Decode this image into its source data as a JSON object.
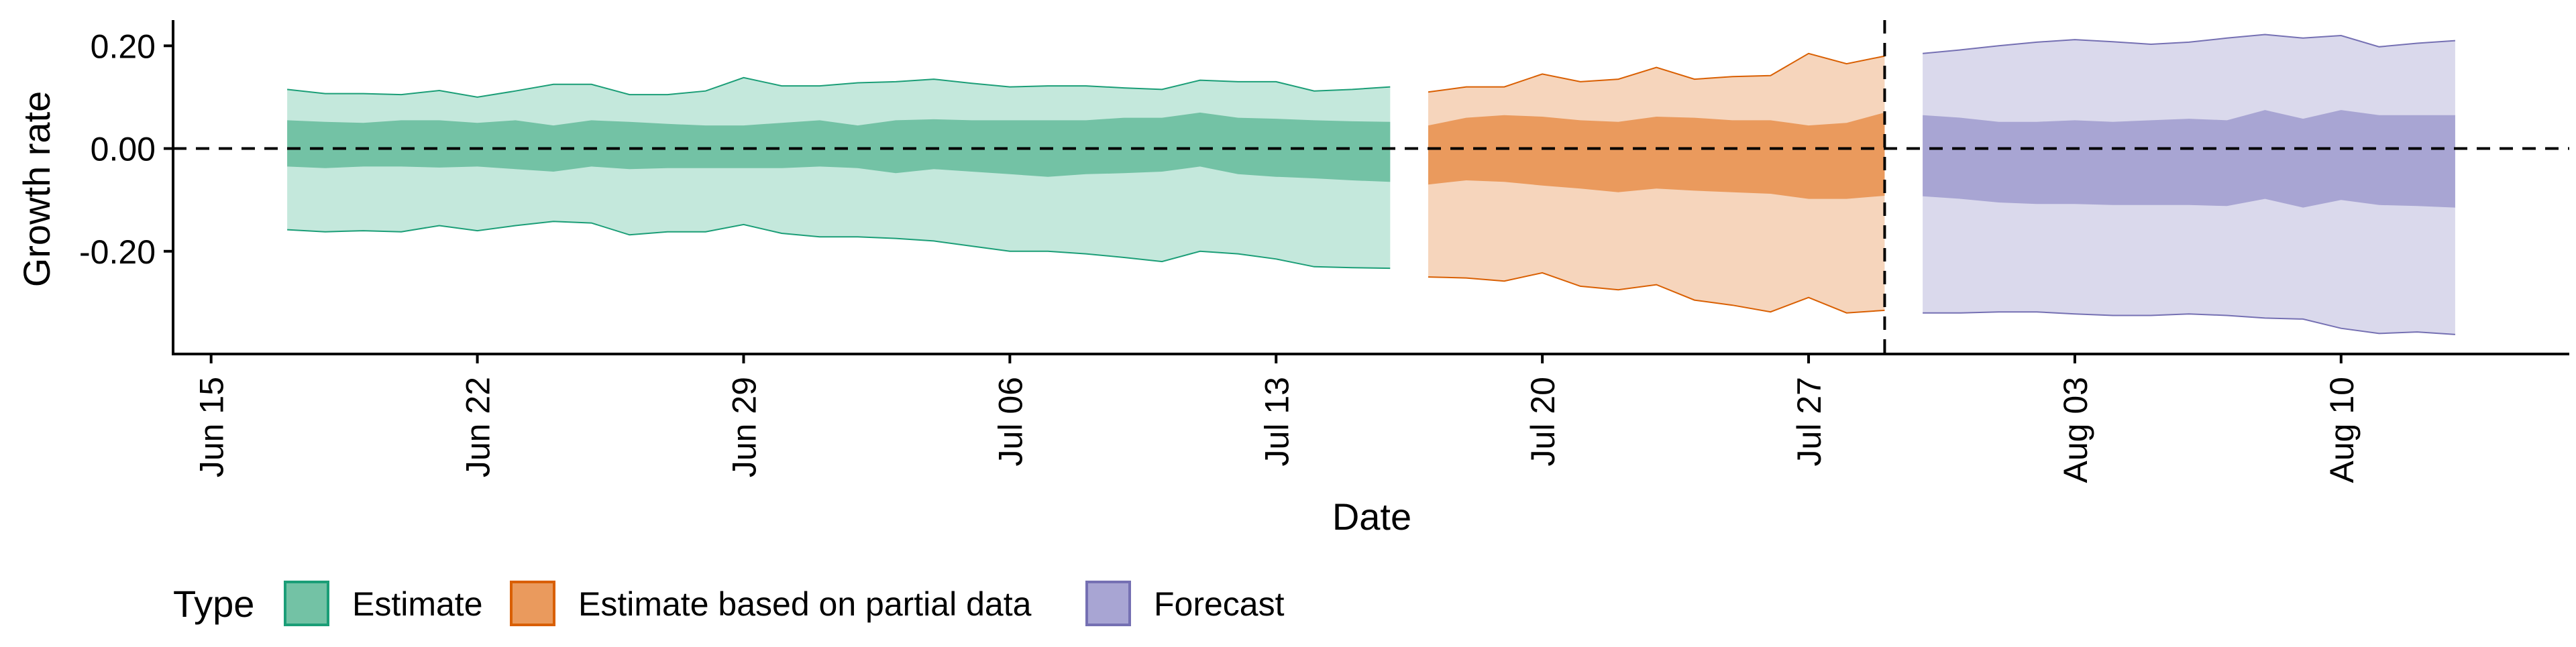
{
  "chart_data": {
    "type": "area",
    "xlabel": "Date",
    "ylabel": "Growth rate",
    "x_axis": {
      "type": "date",
      "range": [
        "2020-06-14",
        "2020-08-16"
      ],
      "ticks": [
        {
          "date": "2020-06-15",
          "label": "Jun 15"
        },
        {
          "date": "2020-06-22",
          "label": "Jun 22"
        },
        {
          "date": "2020-06-29",
          "label": "Jun 29"
        },
        {
          "date": "2020-07-06",
          "label": "Jul 06"
        },
        {
          "date": "2020-07-13",
          "label": "Jul 13"
        },
        {
          "date": "2020-07-20",
          "label": "Jul 20"
        },
        {
          "date": "2020-07-27",
          "label": "Jul 27"
        },
        {
          "date": "2020-08-03",
          "label": "Aug 03"
        },
        {
          "date": "2020-08-10",
          "label": "Aug 10"
        }
      ]
    },
    "y_axis": {
      "range": [
        -0.4,
        0.25
      ],
      "ticks": [
        {
          "value": 0.2,
          "label": "0.20"
        },
        {
          "value": 0.0,
          "label": "0.00"
        },
        {
          "value": -0.2,
          "label": "-0.20"
        }
      ]
    },
    "grid": false,
    "reference_lines": [
      {
        "orientation": "horizontal",
        "value": 0,
        "style": "dashed"
      },
      {
        "orientation": "vertical",
        "value": "2020-07-29",
        "style": "dashed"
      }
    ],
    "legend": {
      "title": "Type",
      "position": "bottom",
      "entries": [
        {
          "label": "Estimate",
          "fill": "#73c2a5",
          "stroke": "#1b9e77"
        },
        {
          "label": "Estimate based on partial data",
          "fill": "#ea9a5d",
          "stroke": "#d95f02"
        },
        {
          "label": "Forecast",
          "fill": "#a8a5d3",
          "stroke": "#7570b3"
        }
      ]
    },
    "series": [
      {
        "name": "Estimate",
        "outer_fill": "#c4e8dc",
        "inner_fill": "#73c2a5",
        "stroke": "#1b9e77",
        "dates": [
          "2020-06-17",
          "2020-06-18",
          "2020-06-19",
          "2020-06-20",
          "2020-06-21",
          "2020-06-22",
          "2020-06-23",
          "2020-06-24",
          "2020-06-25",
          "2020-06-26",
          "2020-06-27",
          "2020-06-28",
          "2020-06-29",
          "2020-06-30",
          "2020-07-01",
          "2020-07-02",
          "2020-07-03",
          "2020-07-04",
          "2020-07-05",
          "2020-07-06",
          "2020-07-07",
          "2020-07-08",
          "2020-07-09",
          "2020-07-10",
          "2020-07-11",
          "2020-07-12",
          "2020-07-13",
          "2020-07-14",
          "2020-07-15",
          "2020-07-16"
        ],
        "upper_outer": [
          0.115,
          0.107,
          0.107,
          0.105,
          0.113,
          0.1,
          0.112,
          0.125,
          0.125,
          0.105,
          0.105,
          0.112,
          0.138,
          0.122,
          0.122,
          0.128,
          0.13,
          0.135,
          0.127,
          0.12,
          0.122,
          0.122,
          0.118,
          0.115,
          0.133,
          0.13,
          0.13,
          0.112,
          0.115,
          0.12
        ],
        "upper_inner": [
          0.055,
          0.052,
          0.05,
          0.055,
          0.055,
          0.05,
          0.055,
          0.045,
          0.055,
          0.052,
          0.048,
          0.045,
          0.045,
          0.05,
          0.055,
          0.045,
          0.055,
          0.057,
          0.055,
          0.055,
          0.055,
          0.055,
          0.06,
          0.06,
          0.07,
          0.06,
          0.058,
          0.055,
          0.053,
          0.052
        ],
        "lower_inner": [
          -0.035,
          -0.038,
          -0.035,
          -0.035,
          -0.037,
          -0.035,
          -0.04,
          -0.045,
          -0.035,
          -0.04,
          -0.038,
          -0.038,
          -0.038,
          -0.038,
          -0.035,
          -0.038,
          -0.048,
          -0.04,
          -0.045,
          -0.05,
          -0.055,
          -0.05,
          -0.048,
          -0.045,
          -0.035,
          -0.05,
          -0.055,
          -0.058,
          -0.062,
          -0.065
        ],
        "lower_outer": [
          -0.158,
          -0.162,
          -0.16,
          -0.162,
          -0.15,
          -0.16,
          -0.15,
          -0.142,
          -0.145,
          -0.168,
          -0.162,
          -0.162,
          -0.148,
          -0.165,
          -0.172,
          -0.172,
          -0.175,
          -0.18,
          -0.19,
          -0.2,
          -0.2,
          -0.205,
          -0.212,
          -0.22,
          -0.2,
          -0.205,
          -0.215,
          -0.23,
          -0.232,
          -0.233
        ]
      },
      {
        "name": "Estimate based on partial data",
        "outer_fill": "#f6d5bc",
        "inner_fill": "#ea9a5d",
        "stroke": "#d95f02",
        "dates": [
          "2020-07-17",
          "2020-07-18",
          "2020-07-19",
          "2020-07-20",
          "2020-07-21",
          "2020-07-22",
          "2020-07-23",
          "2020-07-24",
          "2020-07-25",
          "2020-07-26",
          "2020-07-27",
          "2020-07-28",
          "2020-07-29"
        ],
        "upper_outer": [
          0.11,
          0.12,
          0.12,
          0.145,
          0.13,
          0.135,
          0.158,
          0.135,
          0.14,
          0.142,
          0.185,
          0.165,
          0.18
        ],
        "upper_inner": [
          0.045,
          0.06,
          0.065,
          0.062,
          0.055,
          0.052,
          0.062,
          0.06,
          0.055,
          0.055,
          0.045,
          0.05,
          0.07
        ],
        "lower_inner": [
          -0.07,
          -0.062,
          -0.065,
          -0.072,
          -0.078,
          -0.085,
          -0.078,
          -0.082,
          -0.085,
          -0.088,
          -0.098,
          -0.098,
          -0.092
        ],
        "lower_outer": [
          -0.25,
          -0.252,
          -0.258,
          -0.242,
          -0.268,
          -0.275,
          -0.265,
          -0.295,
          -0.305,
          -0.318,
          -0.29,
          -0.32,
          -0.315
        ]
      },
      {
        "name": "Forecast",
        "outer_fill": "#dad9ec",
        "inner_fill": "#a8a5d3",
        "stroke": "#7570b3",
        "dates": [
          "2020-07-30",
          "2020-07-31",
          "2020-08-01",
          "2020-08-02",
          "2020-08-03",
          "2020-08-04",
          "2020-08-05",
          "2020-08-06",
          "2020-08-07",
          "2020-08-08",
          "2020-08-09",
          "2020-08-10",
          "2020-08-11",
          "2020-08-12",
          "2020-08-13"
        ],
        "upper_outer": [
          0.185,
          0.192,
          0.2,
          0.207,
          0.212,
          0.208,
          0.203,
          0.207,
          0.215,
          0.222,
          0.215,
          0.22,
          0.198,
          0.205,
          0.21
        ],
        "upper_inner": [
          0.065,
          0.06,
          0.052,
          0.052,
          0.055,
          0.052,
          0.055,
          0.058,
          0.055,
          0.075,
          0.058,
          0.075,
          0.065,
          0.065,
          0.065
        ],
        "lower_inner": [
          -0.093,
          -0.098,
          -0.105,
          -0.108,
          -0.108,
          -0.11,
          -0.11,
          -0.11,
          -0.112,
          -0.098,
          -0.115,
          -0.1,
          -0.11,
          -0.112,
          -0.115
        ],
        "lower_outer": [
          -0.32,
          -0.32,
          -0.318,
          -0.318,
          -0.322,
          -0.325,
          -0.325,
          -0.322,
          -0.325,
          -0.33,
          -0.332,
          -0.35,
          -0.36,
          -0.357,
          -0.362
        ]
      }
    ]
  }
}
